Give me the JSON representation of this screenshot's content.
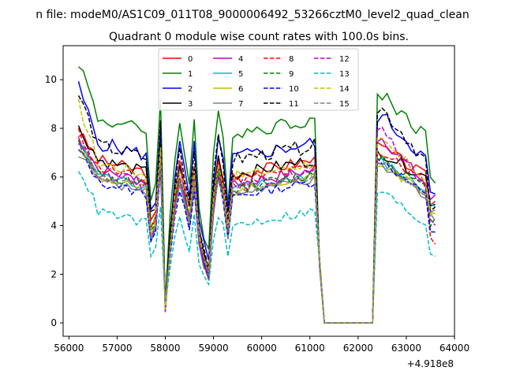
{
  "figure": {
    "suptitle": "n file: modeM0/AS1C09_011T08_9000006492_53266cztM0_level2_quad_clean",
    "title": "Quadrant 0 module wise count rates with 100.0s bins.",
    "offset_label": "+4.918e8"
  },
  "chart_data": {
    "type": "line",
    "title": "Quadrant 0 module wise count rates with 100.0s bins.",
    "xlabel": "",
    "ylabel": "",
    "xlim": [
      55880,
      64000
    ],
    "ylim": [
      -0.55,
      11.4
    ],
    "x_offset": 491800000,
    "xticks": [
      56000,
      57000,
      58000,
      59000,
      60000,
      61000,
      62000,
      63000,
      64000
    ],
    "xtick_labels": [
      "56000",
      "57000",
      "58000",
      "59000",
      "60000",
      "61000",
      "62000",
      "63000",
      "64000"
    ],
    "yticks": [
      0,
      2,
      4,
      6,
      8,
      10
    ],
    "ytick_labels": [
      "0",
      "2",
      "4",
      "6",
      "8",
      "10"
    ],
    "grid": false,
    "legend_position": "top-center",
    "legend_columns": 4,
    "dip_ranges": [
      [
        57800,
        58300
      ],
      [
        58600,
        58950
      ],
      [
        59300,
        59600
      ]
    ],
    "gap_range": [
      61100,
      62400
    ],
    "series": [
      {
        "name": "0",
        "color": "#ff0000",
        "dash": "solid",
        "base": 6.2,
        "noise": 0.5,
        "start": 7.8,
        "post": 7.2,
        "end": 5.0
      },
      {
        "name": "1",
        "color": "#008000",
        "dash": "solid",
        "base": 7.9,
        "noise": 0.6,
        "start": 10.8,
        "post": 9.4,
        "end": 6.0
      },
      {
        "name": "2",
        "color": "#0000ff",
        "dash": "solid",
        "base": 6.9,
        "noise": 0.6,
        "start": 9.7,
        "post": 8.5,
        "end": 5.2
      },
      {
        "name": "3",
        "color": "#000000",
        "dash": "solid",
        "base": 6.2,
        "noise": 0.5,
        "start": 8.0,
        "post": 7.0,
        "end": 5.0
      },
      {
        "name": "4",
        "color": "#bf00bf",
        "dash": "solid",
        "base": 5.8,
        "noise": 0.5,
        "start": 7.6,
        "post": 7.6,
        "end": 5.1
      },
      {
        "name": "5",
        "color": "#00bfbf",
        "dash": "solid",
        "base": 5.6,
        "noise": 0.4,
        "start": 7.4,
        "post": 6.6,
        "end": 4.8
      },
      {
        "name": "6",
        "color": "#bfbf00",
        "dash": "solid",
        "base": 5.5,
        "noise": 0.4,
        "start": 7.2,
        "post": 6.5,
        "end": 4.7
      },
      {
        "name": "7",
        "color": "#808080",
        "dash": "solid",
        "base": 5.4,
        "noise": 0.4,
        "start": 7.0,
        "post": 6.4,
        "end": 4.6
      },
      {
        "name": "8",
        "color": "#ff0000",
        "dash": "dashed",
        "base": 5.9,
        "noise": 0.5,
        "start": 7.8,
        "post": 7.0,
        "end": 3.4
      },
      {
        "name": "9",
        "color": "#008000",
        "dash": "dashed",
        "base": 5.6,
        "noise": 0.5,
        "start": 7.4,
        "post": 6.8,
        "end": 4.2
      },
      {
        "name": "10",
        "color": "#0000ff",
        "dash": "dashed",
        "base": 5.3,
        "noise": 0.4,
        "start": 7.1,
        "post": 6.7,
        "end": 3.8
      },
      {
        "name": "11",
        "color": "#000000",
        "dash": "dashed",
        "base": 6.8,
        "noise": 0.6,
        "start": 9.4,
        "post": 8.8,
        "end": 4.5
      },
      {
        "name": "12",
        "color": "#bf00bf",
        "dash": "dashed",
        "base": 5.7,
        "noise": 0.5,
        "start": 7.5,
        "post": 7.8,
        "end": 4.0
      },
      {
        "name": "13",
        "color": "#00bfbf",
        "dash": "dashed",
        "base": 4.1,
        "noise": 0.4,
        "start": 6.4,
        "post": 5.4,
        "end": 2.9
      },
      {
        "name": "14",
        "color": "#bfbf00",
        "dash": "dashed",
        "base": 6.1,
        "noise": 0.5,
        "start": 9.0,
        "post": 7.4,
        "end": 4.4
      },
      {
        "name": "15",
        "color": "#808080",
        "dash": "dashed",
        "base": 5.5,
        "noise": 0.4,
        "start": 7.0,
        "post": 6.6,
        "end": 4.3
      }
    ]
  }
}
